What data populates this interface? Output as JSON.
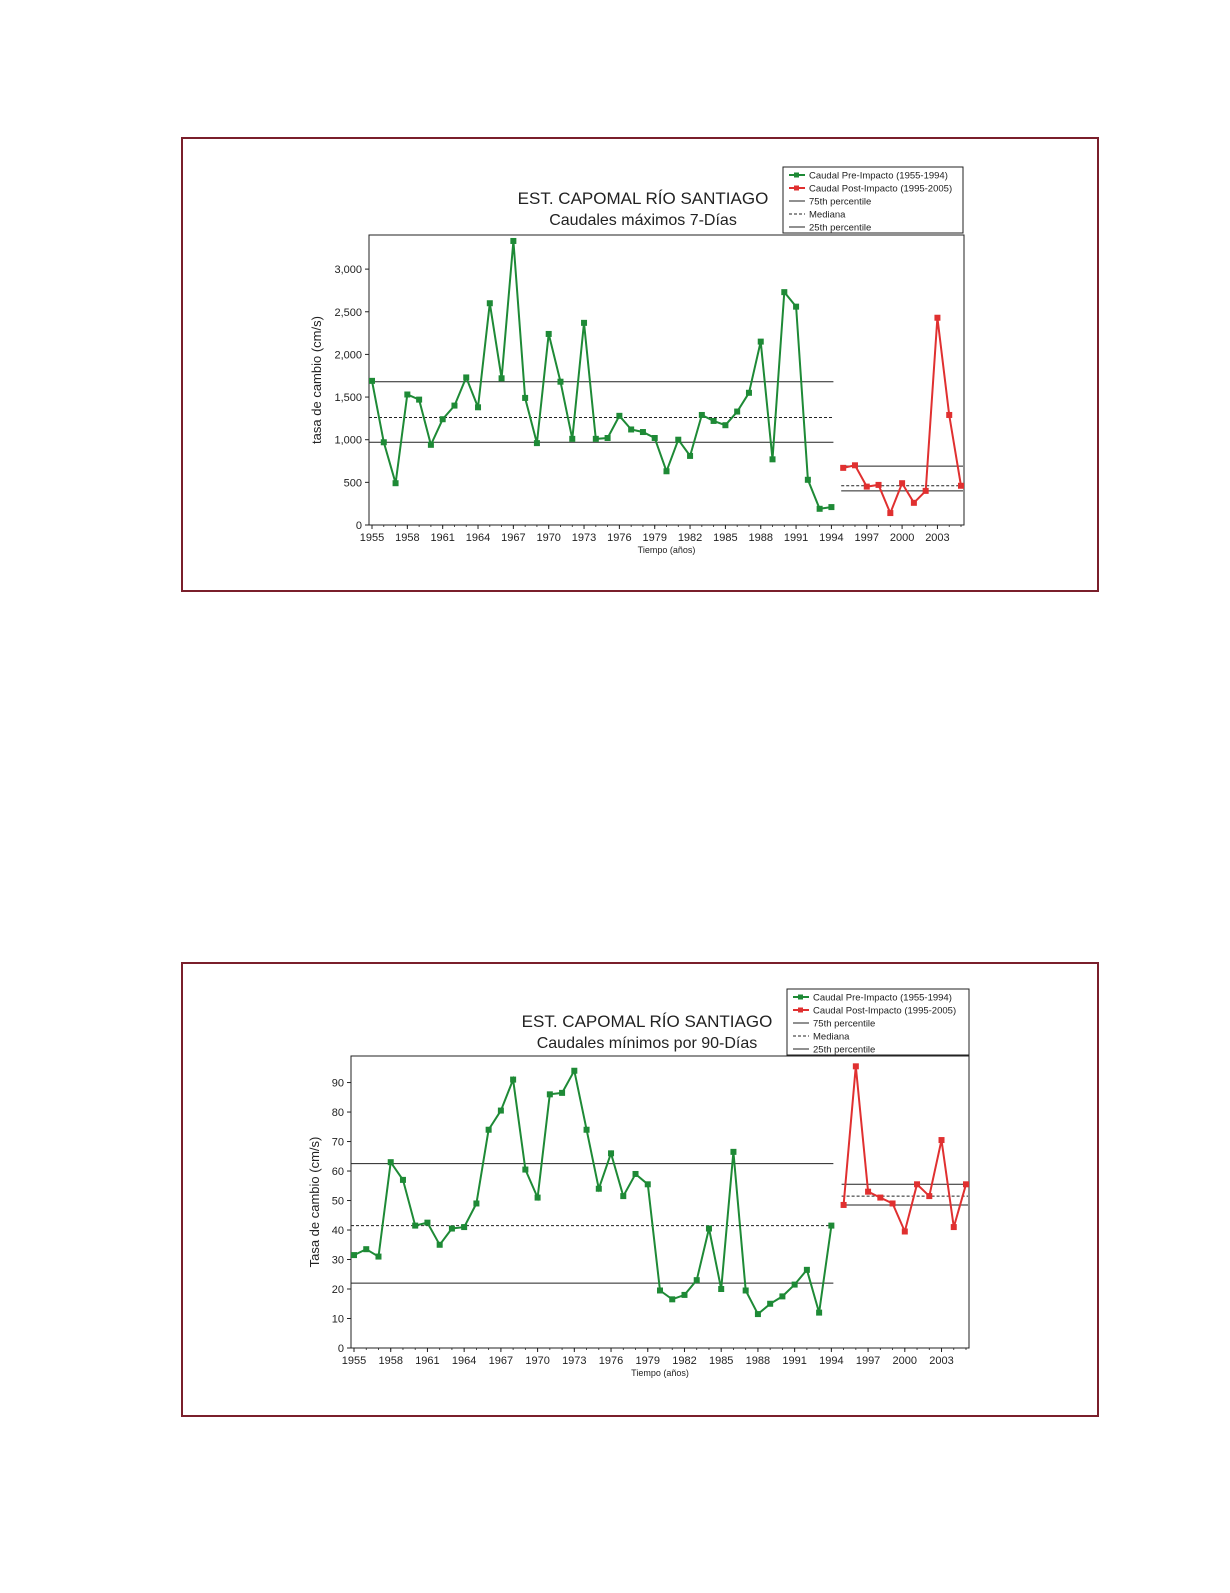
{
  "chart_data": [
    {
      "type": "line",
      "title": "EST. CAPOMAL RÍO SANTIAGO",
      "subtitle": "Caudales máximos 7-Días",
      "xlabel": "Tiempo (años)",
      "ylabel": "tasa de cambio (cm/s)",
      "xlim": [
        1955,
        2005
      ],
      "ylim": [
        0,
        3400
      ],
      "x_ticks": [
        1955,
        1958,
        1961,
        1964,
        1967,
        1970,
        1973,
        1976,
        1979,
        1982,
        1985,
        1988,
        1991,
        1994,
        1997,
        2000,
        2003
      ],
      "y_ticks": [
        0,
        500,
        1000,
        1500,
        2000,
        2500,
        3000
      ],
      "y_tick_labels": [
        "0",
        "500",
        "1,000",
        "1,500",
        "2,000",
        "2,500",
        "3,000"
      ],
      "legend": {
        "position": "top-right",
        "entries": [
          "Caudal Pre-Impacto (1955-1994)",
          "Caudal Post-Impacto (1995-2005)",
          "75th percentile",
          "Mediana",
          "25th percentile"
        ]
      },
      "colors": {
        "pre": "#1e8a36",
        "post": "#e03030",
        "ref": "#222222"
      },
      "series": [
        {
          "name": "Caudal Pre-Impacto (1955-1994)",
          "x": [
            1955,
            1956,
            1957,
            1958,
            1959,
            1960,
            1961,
            1962,
            1963,
            1964,
            1965,
            1966,
            1967,
            1968,
            1969,
            1970,
            1971,
            1972,
            1973,
            1974,
            1975,
            1976,
            1977,
            1978,
            1979,
            1980,
            1981,
            1982,
            1983,
            1984,
            1985,
            1986,
            1987,
            1988,
            1989,
            1990,
            1991,
            1992,
            1993,
            1994
          ],
          "values": [
            1690,
            970,
            490,
            1530,
            1470,
            940,
            1240,
            1400,
            1730,
            1380,
            2600,
            1720,
            3330,
            1490,
            960,
            2240,
            1680,
            1010,
            2370,
            1010,
            1020,
            1280,
            1120,
            1090,
            1020,
            630,
            1000,
            810,
            1290,
            1220,
            1170,
            1330,
            1550,
            2150,
            770,
            2730,
            2560,
            530,
            190,
            210
          ]
        },
        {
          "name": "Caudal Post-Impacto (1995-2005)",
          "x": [
            1995,
            1996,
            1997,
            1998,
            1999,
            2000,
            2001,
            2002,
            2003,
            2004,
            2005
          ],
          "values": [
            670,
            700,
            450,
            470,
            140,
            490,
            260,
            400,
            2430,
            1290,
            460
          ]
        }
      ],
      "reference_lines": {
        "pre": {
          "p75": 1680,
          "median": 1260,
          "p25": 970
        },
        "post": {
          "p75": 690,
          "median": 460,
          "p25": 400
        }
      }
    },
    {
      "type": "line",
      "title": "EST. CAPOMAL RÍO SANTIAGO",
      "subtitle": "Caudales mínimos por 90-Días",
      "xlabel": "Tiempo (años)",
      "ylabel": "Tasa de cambio (cm/s)",
      "xlim": [
        1955,
        2005
      ],
      "ylim": [
        0,
        99
      ],
      "x_ticks": [
        1955,
        1958,
        1961,
        1964,
        1967,
        1970,
        1973,
        1976,
        1979,
        1982,
        1985,
        1988,
        1991,
        1994,
        1997,
        2000,
        2003
      ],
      "y_ticks": [
        0,
        10,
        20,
        30,
        40,
        50,
        60,
        70,
        80,
        90
      ],
      "y_tick_labels": [
        "0",
        "10",
        "20",
        "30",
        "40",
        "50",
        "60",
        "70",
        "80",
        "90"
      ],
      "legend": {
        "position": "top-right",
        "entries": [
          "Caudal Pre-Impacto (1955-1994)",
          "Caudal Post-Impacto (1995-2005)",
          "75th percentile",
          "Mediana",
          "25th percentile"
        ]
      },
      "colors": {
        "pre": "#1e8a36",
        "post": "#e03030",
        "ref": "#222222"
      },
      "series": [
        {
          "name": "Caudal Pre-Impacto (1955-1994)",
          "x": [
            1955,
            1956,
            1957,
            1958,
            1959,
            1960,
            1961,
            1962,
            1963,
            1964,
            1965,
            1966,
            1967,
            1968,
            1969,
            1970,
            1971,
            1972,
            1973,
            1974,
            1975,
            1976,
            1977,
            1978,
            1979,
            1980,
            1981,
            1982,
            1983,
            1984,
            1985,
            1986,
            1987,
            1988,
            1989,
            1990,
            1991,
            1992,
            1993,
            1994
          ],
          "values": [
            31.5,
            33.5,
            31,
            63,
            57,
            41.5,
            42.5,
            35,
            40.5,
            41,
            49,
            74,
            80.5,
            91,
            60.5,
            51,
            86,
            86.5,
            94,
            74,
            54,
            66,
            51.5,
            59,
            55.5,
            19.5,
            16.5,
            18,
            23,
            40.5,
            20,
            66.5,
            19.5,
            11.5,
            15,
            17.5,
            21.5,
            26.5,
            12,
            41.5
          ]
        },
        {
          "name": "Caudal Post-Impacto (1995-2005)",
          "x": [
            1995,
            1996,
            1997,
            1998,
            1999,
            2000,
            2001,
            2002,
            2003,
            2004,
            2005
          ],
          "values": [
            48.5,
            95.5,
            53,
            51,
            49,
            39.5,
            55.5,
            51.5,
            70.5,
            41,
            55.5
          ]
        }
      ],
      "reference_lines": {
        "pre": {
          "p75": 62.5,
          "median": 41.5,
          "p25": 22
        },
        "post": {
          "p75": 55.5,
          "median": 51.5,
          "p25": 48.5
        }
      }
    }
  ]
}
